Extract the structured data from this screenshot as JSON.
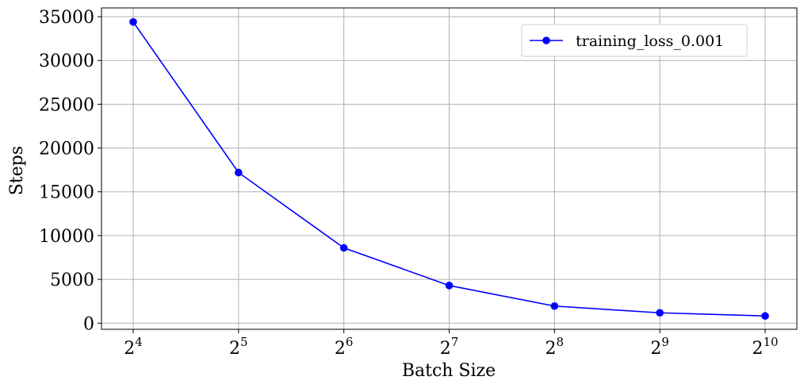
{
  "chart_data": {
    "type": "line",
    "title": "",
    "xlabel": "Batch Size",
    "ylabel": "Steps",
    "x_scale": "log2",
    "x": [
      16,
      32,
      64,
      128,
      256,
      512,
      1024
    ],
    "x_tick_labels": [
      {
        "base": "2",
        "exp": "4"
      },
      {
        "base": "2",
        "exp": "5"
      },
      {
        "base": "2",
        "exp": "6"
      },
      {
        "base": "2",
        "exp": "7"
      },
      {
        "base": "2",
        "exp": "8"
      },
      {
        "base": "2",
        "exp": "9"
      },
      {
        "base": "2",
        "exp": "10"
      }
    ],
    "y_ticks": [
      "0",
      "5000",
      "10000",
      "15000",
      "20000",
      "25000",
      "30000",
      "35000"
    ],
    "ylim": [
      -700,
      36000
    ],
    "grid": true,
    "legend_position": "top-right",
    "series": [
      {
        "name": "training_loss_0.001",
        "color": "#0000ff",
        "marker": "circle",
        "values": [
          34400,
          17200,
          8600,
          4300,
          1950,
          1180,
          820
        ]
      }
    ]
  }
}
